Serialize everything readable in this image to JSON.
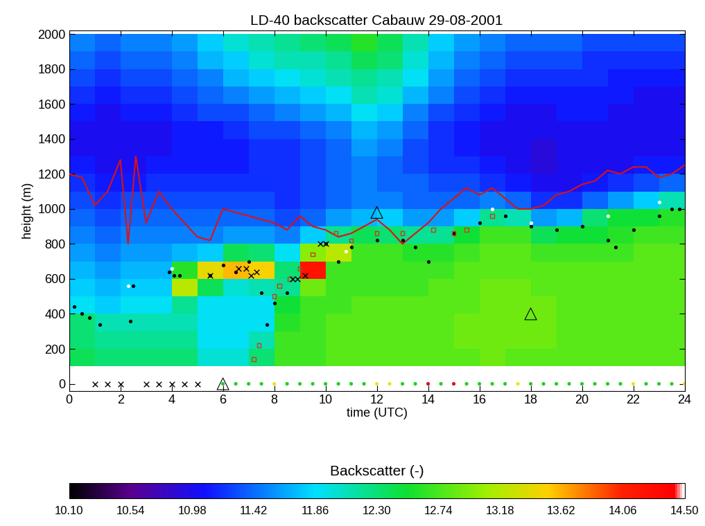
{
  "chart_data": {
    "type": "heatmap",
    "title": "LD-40 backscatter Cabauw 29-08-2001",
    "x_label": "time (UTC)",
    "y_label": "height (m)",
    "xlim": [
      0,
      24
    ],
    "xticks": [
      0,
      2,
      4,
      6,
      8,
      10,
      12,
      14,
      16,
      18,
      20,
      22,
      24
    ],
    "ylim": [
      -40,
      2020
    ],
    "yticks": [
      0,
      200,
      400,
      600,
      800,
      1000,
      1200,
      1400,
      1600,
      1800,
      2000
    ],
    "grid": false,
    "x_edges": [
      0,
      1,
      2,
      3,
      4,
      5,
      6,
      7,
      8,
      9,
      10,
      11,
      12,
      13,
      14,
      15,
      16,
      17,
      18,
      19,
      20,
      21,
      22,
      23,
      24
    ],
    "y_edges": [
      100,
      200,
      300,
      400,
      500,
      600,
      700,
      800,
      900,
      1000,
      1100,
      1200,
      1300,
      1400,
      1500,
      1600,
      1700,
      1800,
      1900,
      2000
    ],
    "cells": [
      [
        12.4,
        12.3,
        12.3,
        12.3,
        12.3,
        12.0,
        12.0,
        12.3,
        12.7,
        12.7,
        12.8,
        12.8,
        12.8,
        12.8,
        12.8,
        12.8,
        12.9,
        12.8,
        12.8,
        12.8,
        12.8,
        12.8,
        12.8,
        12.8
      ],
      [
        12.3,
        12.2,
        12.2,
        12.2,
        12.2,
        11.9,
        11.9,
        12.1,
        12.7,
        12.7,
        12.8,
        12.8,
        12.8,
        12.8,
        12.8,
        12.9,
        12.9,
        12.9,
        12.9,
        12.8,
        12.8,
        12.8,
        12.8,
        12.8
      ],
      [
        12.3,
        12.1,
        12.1,
        12.1,
        12.1,
        11.9,
        11.9,
        11.9,
        12.6,
        12.7,
        12.8,
        12.8,
        12.8,
        12.8,
        12.8,
        12.9,
        12.9,
        12.9,
        12.9,
        12.8,
        12.8,
        12.8,
        12.8,
        12.8
      ],
      [
        11.9,
        11.8,
        11.9,
        11.9,
        12.2,
        11.9,
        11.9,
        11.9,
        12.5,
        12.7,
        12.7,
        12.8,
        12.8,
        12.8,
        12.8,
        12.8,
        12.9,
        12.9,
        12.9,
        12.8,
        12.8,
        12.8,
        12.8,
        12.8
      ],
      [
        11.8,
        11.7,
        11.8,
        11.8,
        13.2,
        12.4,
        12.0,
        12.1,
        12.2,
        12.9,
        12.7,
        12.7,
        12.7,
        12.7,
        12.8,
        12.8,
        12.9,
        12.9,
        12.8,
        12.8,
        12.8,
        12.8,
        12.8,
        12.8
      ],
      [
        11.7,
        11.6,
        11.7,
        11.7,
        12.6,
        13.4,
        13.6,
        13.5,
        12.3,
        14.2,
        12.7,
        12.7,
        12.7,
        12.7,
        12.7,
        12.8,
        12.8,
        12.8,
        12.8,
        12.8,
        12.8,
        12.8,
        12.8,
        12.8
      ],
      [
        11.6,
        11.5,
        11.6,
        11.6,
        11.7,
        11.8,
        12.4,
        12.3,
        11.9,
        13.0,
        13.2,
        12.7,
        12.7,
        12.6,
        12.6,
        12.7,
        12.8,
        12.8,
        12.7,
        12.7,
        12.7,
        12.7,
        12.8,
        12.8
      ],
      [
        11.5,
        11.4,
        11.5,
        11.5,
        11.5,
        11.5,
        11.6,
        11.6,
        11.5,
        11.8,
        12.2,
        12.4,
        12.3,
        12.2,
        12.2,
        12.5,
        12.7,
        12.7,
        12.4,
        12.5,
        12.5,
        12.6,
        12.7,
        12.7
      ],
      [
        11.4,
        11.3,
        11.4,
        11.4,
        11.4,
        11.4,
        11.4,
        11.4,
        11.3,
        11.4,
        11.6,
        11.7,
        11.8,
        11.6,
        11.6,
        11.8,
        12.2,
        12.1,
        11.6,
        11.7,
        12.3,
        12.5,
        12.5,
        12.6
      ],
      [
        11.3,
        11.2,
        11.3,
        11.3,
        11.3,
        11.3,
        11.3,
        11.3,
        11.2,
        11.3,
        11.4,
        11.5,
        11.5,
        11.4,
        11.4,
        11.4,
        11.5,
        11.4,
        11.2,
        11.2,
        11.4,
        11.6,
        11.8,
        12.1
      ],
      [
        11.2,
        11.1,
        11.1,
        11.2,
        11.2,
        11.2,
        11.2,
        11.2,
        11.2,
        11.3,
        11.4,
        11.5,
        11.4,
        11.4,
        11.3,
        11.3,
        11.2,
        11.1,
        11.0,
        11.0,
        11.1,
        11.2,
        11.3,
        11.4
      ],
      [
        11.1,
        11.0,
        11.0,
        11.1,
        11.1,
        11.1,
        11.1,
        11.2,
        11.2,
        11.3,
        11.4,
        11.5,
        11.4,
        11.3,
        11.2,
        11.2,
        11.1,
        11.0,
        10.9,
        11.0,
        11.0,
        11.0,
        11.1,
        11.1
      ],
      [
        11.0,
        11.0,
        11.0,
        11.0,
        11.1,
        11.1,
        11.1,
        11.2,
        11.2,
        11.3,
        11.4,
        11.6,
        11.5,
        11.3,
        11.2,
        11.1,
        11.0,
        11.0,
        10.9,
        11.0,
        11.0,
        11.0,
        11.0,
        11.0
      ],
      [
        11.0,
        11.0,
        11.0,
        11.0,
        11.1,
        11.1,
        11.2,
        11.3,
        11.3,
        11.4,
        11.5,
        11.7,
        11.6,
        11.4,
        11.2,
        11.1,
        11.0,
        11.0,
        11.0,
        11.0,
        11.0,
        11.0,
        11.0,
        11.0
      ],
      [
        11.1,
        11.0,
        11.1,
        11.1,
        11.2,
        11.3,
        11.3,
        11.4,
        11.5,
        11.6,
        11.7,
        11.9,
        11.8,
        11.5,
        11.3,
        11.2,
        11.1,
        11.0,
        11.0,
        11.1,
        11.1,
        11.0,
        11.0,
        11.0
      ],
      [
        11.2,
        11.1,
        11.2,
        11.2,
        11.3,
        11.4,
        11.5,
        11.6,
        11.7,
        11.8,
        11.9,
        12.1,
        12.0,
        11.7,
        11.5,
        11.3,
        11.2,
        11.1,
        11.1,
        11.1,
        11.1,
        11.1,
        11.0,
        11.0
      ],
      [
        11.3,
        11.2,
        11.3,
        11.3,
        11.4,
        11.5,
        11.7,
        11.8,
        11.9,
        12.0,
        12.1,
        12.2,
        12.1,
        11.9,
        11.6,
        11.4,
        11.3,
        11.2,
        11.2,
        11.2,
        11.2,
        11.1,
        11.1,
        11.1
      ],
      [
        11.4,
        11.3,
        11.4,
        11.4,
        11.5,
        11.7,
        11.8,
        12.0,
        12.1,
        12.1,
        12.2,
        12.4,
        12.3,
        12.0,
        11.7,
        11.5,
        11.4,
        11.3,
        11.3,
        11.3,
        11.2,
        11.2,
        11.2,
        11.2
      ],
      [
        11.5,
        11.4,
        11.5,
        11.5,
        11.6,
        11.8,
        12.0,
        12.1,
        12.2,
        12.3,
        12.4,
        12.6,
        12.4,
        12.1,
        11.8,
        11.6,
        11.5,
        11.4,
        11.4,
        11.4,
        11.3,
        11.3,
        11.3,
        11.3
      ]
    ],
    "colorbar": {
      "title": "Backscatter (-)",
      "range": [
        10.1,
        14.5
      ],
      "ticks": [
        {
          "value": 10.1,
          "label": "10.10"
        },
        10.54,
        10.98,
        11.42,
        11.86,
        {
          "value": 12.3,
          "label": "12.30"
        },
        12.74,
        13.18,
        13.62,
        14.06,
        {
          "value": 14.5,
          "label": "14.50"
        }
      ]
    },
    "series": [
      {
        "type": "line",
        "color": "#e01010",
        "marker": "none",
        "x": [
          0,
          0.5,
          1,
          1.5,
          2,
          2.3,
          2.6,
          3,
          3.5,
          4,
          4.5,
          5,
          5.5,
          6,
          6.5,
          7,
          7.5,
          8,
          8.5,
          9,
          9.5,
          10,
          10.5,
          11,
          11.5,
          12,
          12.5,
          13,
          13.5,
          14,
          14.5,
          15,
          15.5,
          16,
          16.5,
          17,
          17.5,
          18,
          18.5,
          19,
          19.5,
          20,
          20.5,
          21,
          21.5,
          22,
          22.5,
          23,
          23.5,
          24
        ],
        "values": [
          1200,
          1180,
          1020,
          1100,
          1280,
          800,
          1300,
          920,
          1100,
          1000,
          920,
          840,
          820,
          1000,
          980,
          960,
          940,
          920,
          880,
          960,
          900,
          880,
          840,
          860,
          900,
          940,
          880,
          800,
          860,
          920,
          1000,
          1060,
          1120,
          1080,
          1120,
          1060,
          1000,
          1000,
          1020,
          1080,
          1100,
          1140,
          1160,
          1220,
          1200,
          1240,
          1240,
          1180,
          1200,
          1250
        ]
      },
      {
        "type": "scatter",
        "color": "#000000",
        "marker": "circle",
        "x": [
          0.2,
          0.5,
          0.8,
          1.2,
          2.4,
          2.5,
          3.9,
          4.1,
          4.3,
          5.5,
          6,
          6.5,
          7,
          7.5,
          7.7,
          8,
          8.5,
          10,
          10.5,
          11,
          12,
          13,
          13.5,
          14,
          15,
          16,
          17,
          18,
          19,
          20,
          21,
          21.3,
          22,
          23,
          23.5,
          23.8
        ],
        "values": [
          440,
          400,
          380,
          340,
          360,
          560,
          640,
          620,
          620,
          620,
          680,
          640,
          700,
          520,
          340,
          460,
          520,
          800,
          700,
          780,
          820,
          820,
          780,
          700,
          860,
          920,
          960,
          900,
          880,
          900,
          820,
          780,
          880,
          960,
          1000,
          1000
        ]
      },
      {
        "type": "scatter",
        "color": "#ffffff",
        "marker": "circle",
        "x": [
          2.3,
          4.0,
          10.8,
          16.5,
          18,
          21,
          23
        ],
        "values": [
          560,
          660,
          760,
          1000,
          920,
          960,
          1040
        ]
      },
      {
        "type": "scatter",
        "color": "#c04020",
        "marker": "square",
        "x": [
          7.2,
          7.4,
          8.0,
          8.2,
          8.6,
          9.0,
          9.5,
          10.4,
          11,
          12,
          13,
          14.2,
          15,
          15.5,
          16.5
        ],
        "values": [
          140,
          220,
          500,
          560,
          600,
          660,
          740,
          860,
          820,
          860,
          860,
          880,
          860,
          880,
          960
        ]
      },
      {
        "type": "scatter",
        "color": "#000000",
        "marker": "x",
        "x": [
          5.5,
          6.6,
          6.9,
          7.1,
          7.3,
          8.7,
          8.9,
          9.2,
          9.8,
          10,
          1,
          1.5,
          2,
          3,
          3.5,
          4,
          4.5,
          5
        ],
        "values": [
          620,
          660,
          660,
          620,
          640,
          600,
          600,
          620,
          800,
          800,
          0,
          0,
          0,
          0,
          0,
          0,
          0,
          0
        ]
      },
      {
        "type": "scatter",
        "color": "#000000",
        "marker": "triangle",
        "x": [
          6,
          12,
          18
        ],
        "values": [
          0,
          980,
          400
        ]
      },
      {
        "type": "scatter",
        "marker": "circle",
        "x": [
          6,
          6.5,
          7,
          7.5,
          8,
          8.5,
          9,
          9.5,
          10,
          10.5,
          11,
          11.5,
          12,
          12.5,
          13,
          13.5,
          14,
          14.5,
          15,
          15.5,
          16,
          16.5,
          17,
          17.5,
          18,
          18.5,
          19,
          19.5,
          20,
          20.5,
          21,
          21.5,
          22,
          22.5,
          23,
          23.5,
          24
        ],
        "values": [
          0,
          0,
          0,
          0,
          0,
          0,
          0,
          0,
          0,
          0,
          0,
          0,
          0,
          0,
          0,
          0,
          0,
          0,
          0,
          0,
          0,
          0,
          0,
          0,
          0,
          0,
          0,
          0,
          0,
          0,
          0,
          0,
          0,
          0,
          0,
          0,
          0
        ],
        "colors": [
          "#20d020",
          "#20d020",
          "#20d020",
          "#20d020",
          "#f0e020",
          "#20d020",
          "#20d020",
          "#20d020",
          "#20d020",
          "#20d020",
          "#20d020",
          "#20d020",
          "#f0e020",
          "#f0e020",
          "#20d020",
          "#20d020",
          "#e01010",
          "#20d020",
          "#e01010",
          "#20d020",
          "#20d020",
          "#20d020",
          "#20d020",
          "#f0e020",
          "#20d020",
          "#20d020",
          "#20d020",
          "#20d020",
          "#20d020",
          "#20d020",
          "#20d020",
          "#20d020",
          "#f0e020",
          "#20d020",
          "#20d020",
          "#20d020",
          "#f0e020"
        ]
      }
    ]
  }
}
